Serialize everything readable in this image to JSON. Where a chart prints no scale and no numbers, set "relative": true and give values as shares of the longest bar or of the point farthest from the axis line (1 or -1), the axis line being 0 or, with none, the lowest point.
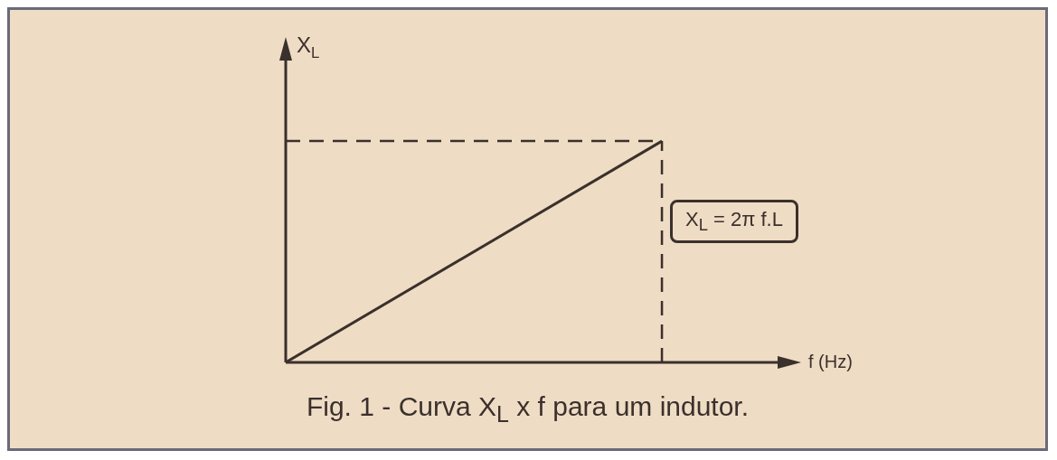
{
  "chart_data": {
    "type": "line",
    "relative": true,
    "title": "Fig. 1 - Curva X$_{L}$ x f para um indutor.",
    "xlabel": "f (Hz)",
    "ylabel": "X$_{L}$",
    "categories": [
      null,
      null
    ],
    "values": [
      0,
      1
    ],
    "color": "#3a302c",
    "marker": "none",
    "line_style": "solid",
    "legend": false,
    "annotations": [
      "X$_{L}$ = 2π f.L"
    ]
  }
}
